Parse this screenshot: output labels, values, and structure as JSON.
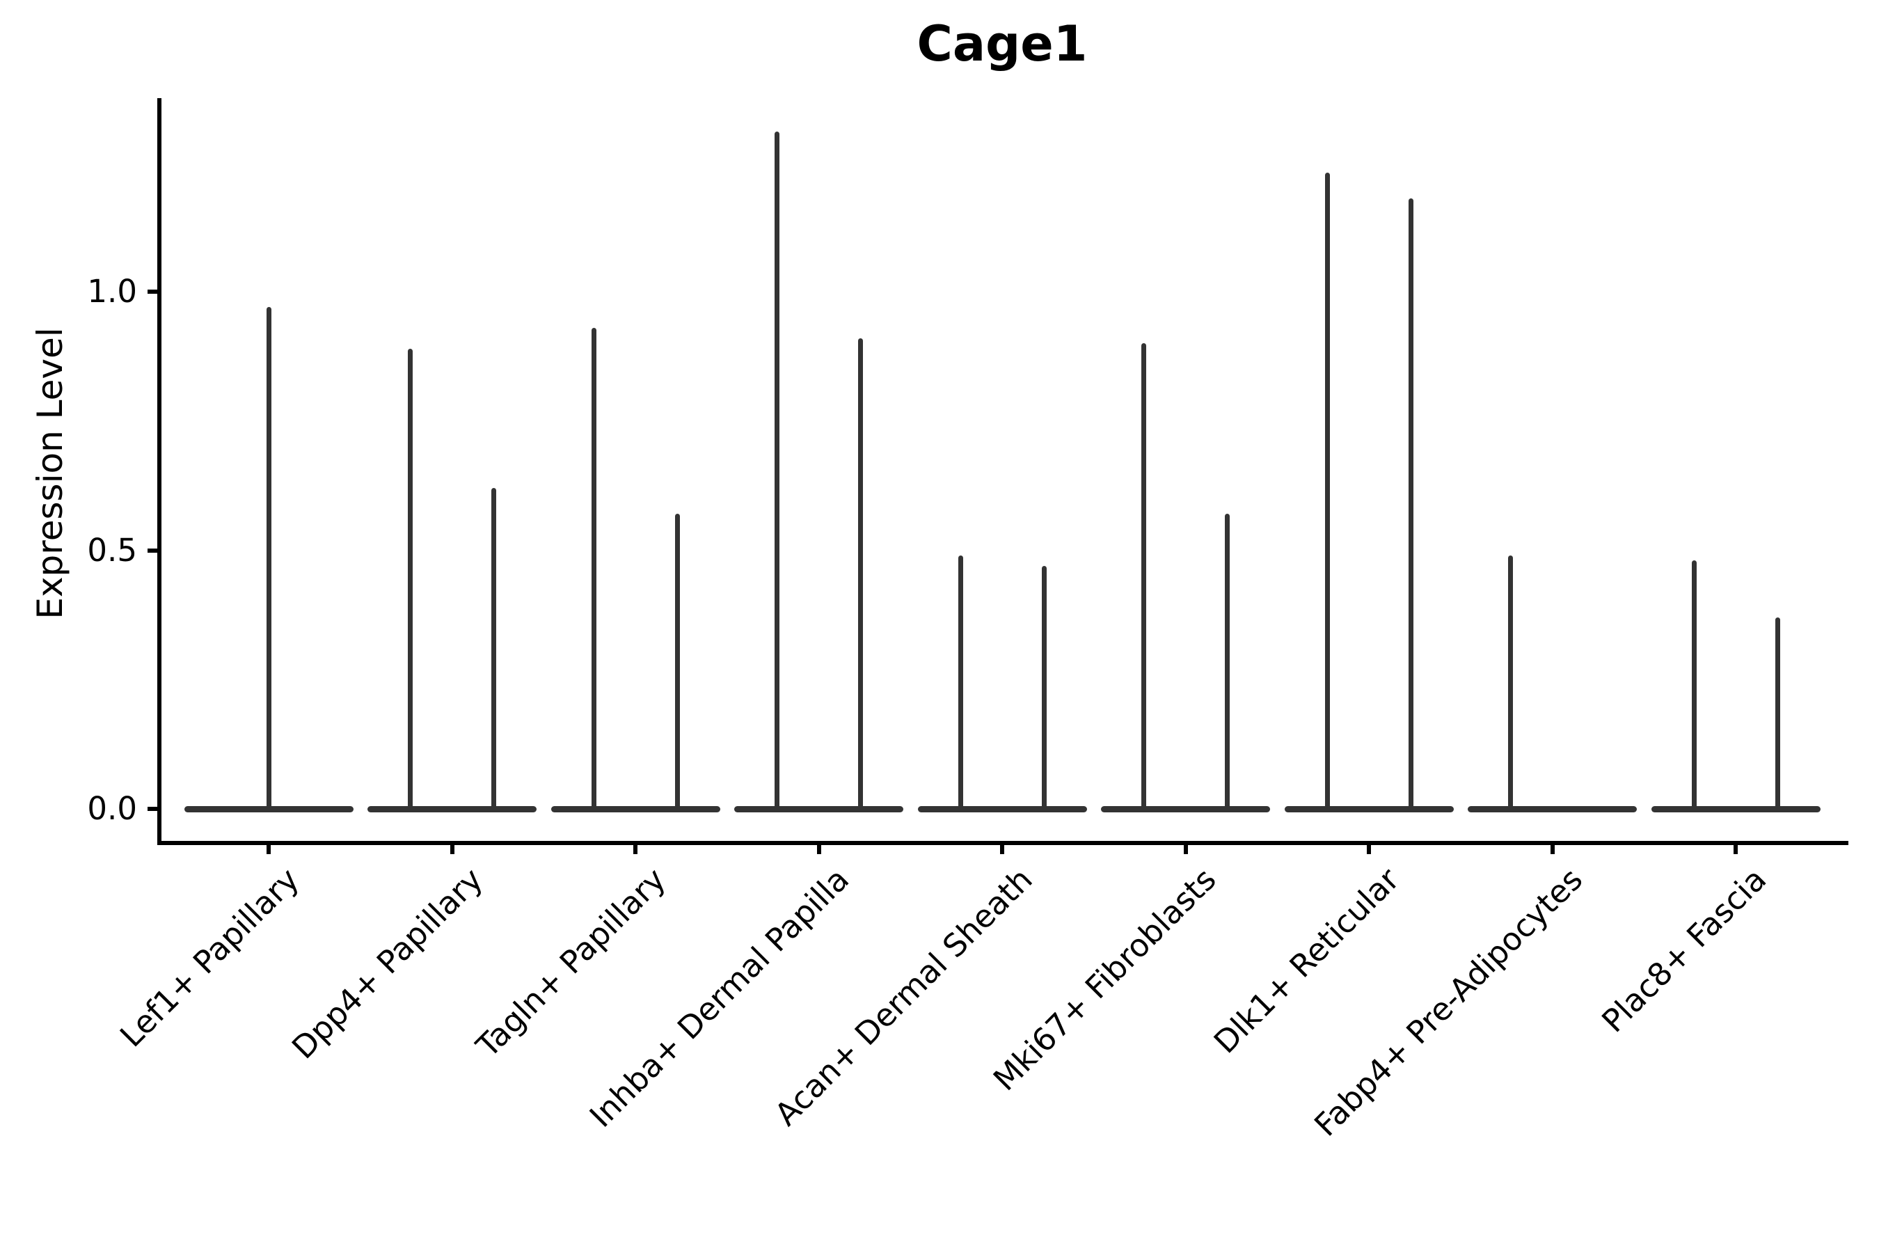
{
  "chart_data": {
    "type": "violin",
    "title": "Cage1",
    "ylabel": "Expression Level",
    "xlabel": "",
    "ylim": [
      -0.05,
      1.38
    ],
    "yticks": [
      0.0,
      0.5,
      1.0
    ],
    "ytick_labels": [
      "0.0",
      "0.5",
      "1.0"
    ],
    "grid": false,
    "legend": "none",
    "background": "#ffffff",
    "axis_color": "#000000",
    "violin_color": "#333333",
    "categories": [
      "Lef1+ Papillary",
      "Dpp4+ Papillary",
      "Tagln+ Papillary",
      "Inhba+ Dermal Papilla",
      "Acan+ Dermal Sheath",
      "Mki67+ Fibroblasts",
      "Dlk1+ Reticular",
      "Fabp4+ Pre-Adipocytes",
      "Plac8+ Fascia"
    ],
    "groups": [
      {
        "category": "Lef1+ Papillary",
        "violins": [
          {
            "side": "center",
            "max_expression": 0.97
          }
        ]
      },
      {
        "category": "Dpp4+ Papillary",
        "violins": [
          {
            "side": "left",
            "max_expression": 0.89
          },
          {
            "side": "right",
            "max_expression": 0.62
          }
        ]
      },
      {
        "category": "Tagln+ Papillary",
        "violins": [
          {
            "side": "left",
            "max_expression": 0.93
          },
          {
            "side": "right",
            "max_expression": 0.57
          }
        ]
      },
      {
        "category": "Inhba+ Dermal Papilla",
        "violins": [
          {
            "side": "left",
            "max_expression": 1.31
          },
          {
            "side": "right",
            "max_expression": 0.91
          }
        ]
      },
      {
        "category": "Acan+ Dermal Sheath",
        "violins": [
          {
            "side": "left",
            "max_expression": 0.49
          },
          {
            "side": "right",
            "max_expression": 0.47
          }
        ]
      },
      {
        "category": "Mki67+ Fibroblasts",
        "violins": [
          {
            "side": "left",
            "max_expression": 0.9
          },
          {
            "side": "right",
            "max_expression": 0.57
          }
        ]
      },
      {
        "category": "Dlk1+ Reticular",
        "violins": [
          {
            "side": "left",
            "max_expression": 1.23
          },
          {
            "side": "right",
            "max_expression": 1.18
          }
        ]
      },
      {
        "category": "Fabp4+ Pre-Adipocytes",
        "violins": [
          {
            "side": "left",
            "max_expression": 0.49
          }
        ]
      },
      {
        "category": "Plac8+ Fascia",
        "violins": [
          {
            "side": "left",
            "max_expression": 0.48
          },
          {
            "side": "right",
            "max_expression": 0.37
          }
        ]
      }
    ]
  }
}
